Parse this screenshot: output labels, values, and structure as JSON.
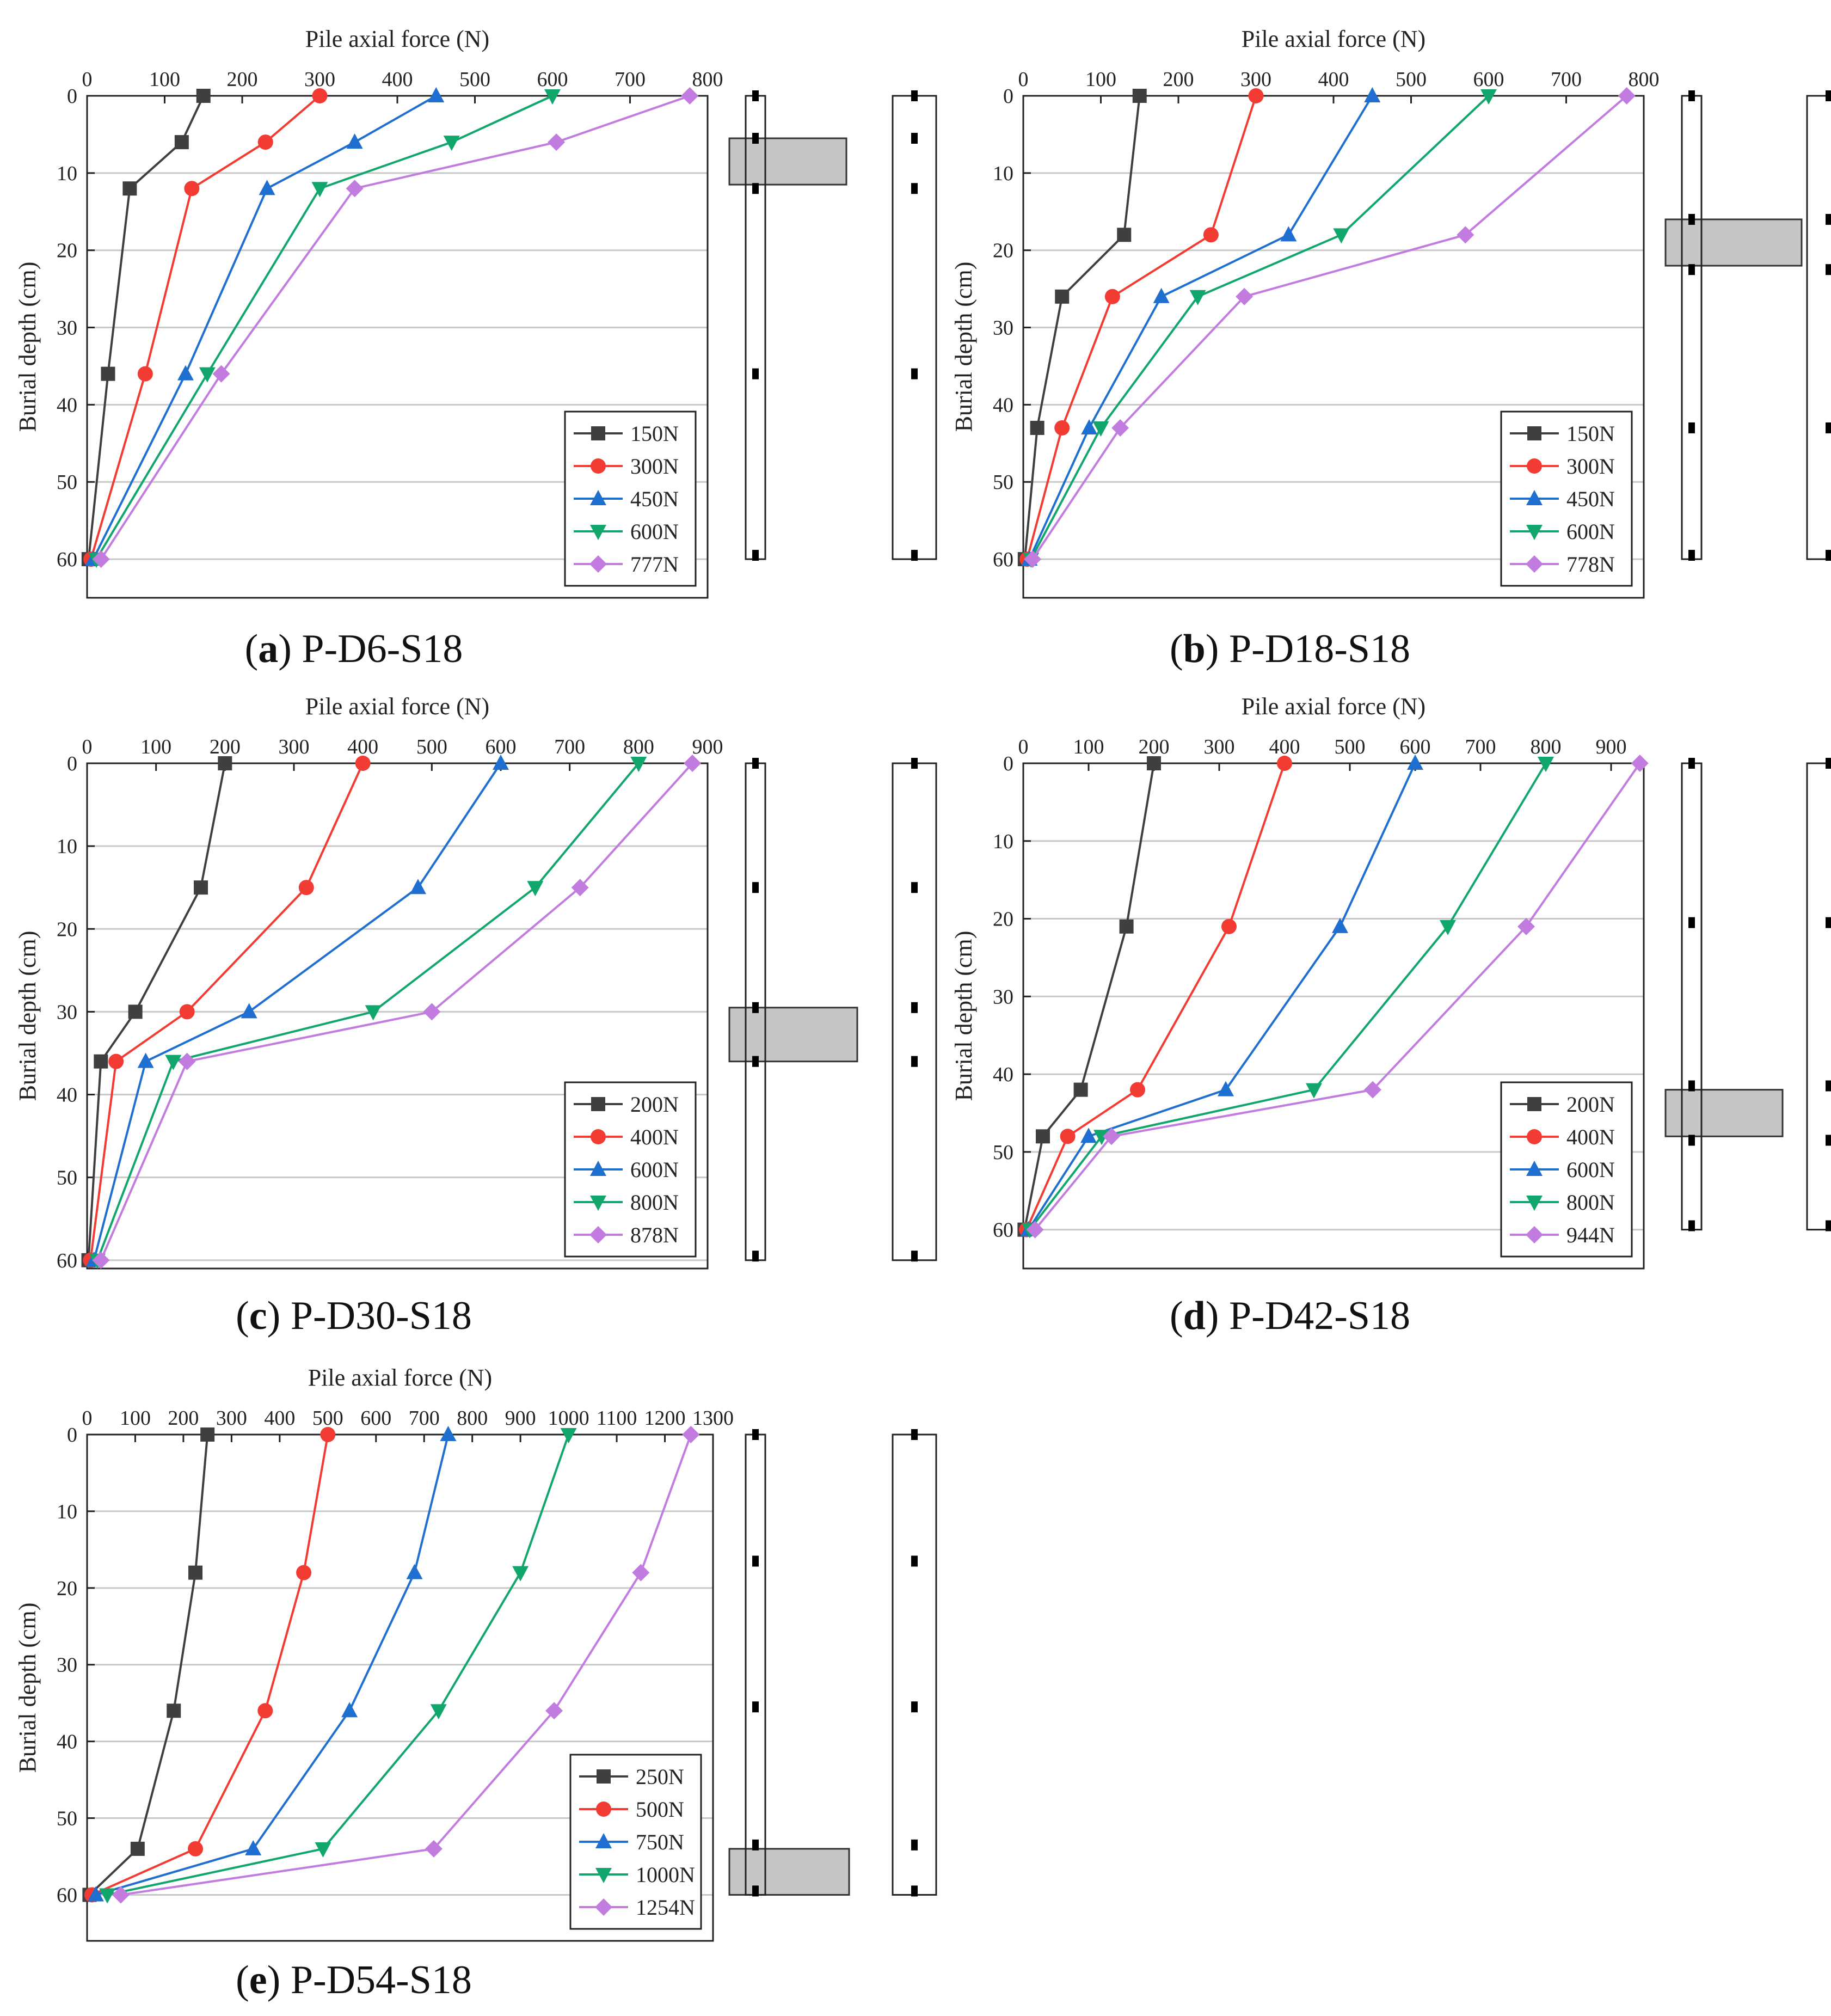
{
  "colors": {
    "series": [
      "#3f3f3f",
      "#f23b32",
      "#1f6fd0",
      "#11a66c",
      "#c27ce0"
    ],
    "soil_layer": "#c6c6c6",
    "grid": "#c8c8c8"
  },
  "markers": [
    "square-icon",
    "circle-icon",
    "triangle-up-icon",
    "triangle-down-icon",
    "diamond-icon"
  ],
  "chart_data": [
    {
      "type": "line",
      "title": "Pile axial force (N)",
      "xlabel": "Pile axial force (N)",
      "ylabel": "Burial depth (cm)",
      "caption_letter": "a",
      "caption_name": "P-D6-S18",
      "xlim": [
        0,
        800
      ],
      "ylim": [
        65,
        0
      ],
      "y_inverted": true,
      "xticks": [
        0,
        100,
        200,
        300,
        400,
        500,
        600,
        700,
        800
      ],
      "xtick_labels": [
        "0",
        "100",
        "200",
        "300",
        "400",
        "500",
        "600",
        "700",
        "800"
      ],
      "yticks": [
        0,
        10,
        20,
        30,
        40,
        50,
        60
      ],
      "ytick_labels": [
        "0",
        "10",
        "20",
        "30",
        "40",
        "50",
        "60"
      ],
      "legend_position": "bottom-right",
      "grid": "horizontal",
      "depths": [
        0,
        6,
        12,
        36,
        60
      ],
      "soil_layer_depth": [
        5.5,
        11.5
      ],
      "gauge_depths": [
        0,
        5.5,
        12,
        36,
        59.5
      ],
      "series": [
        {
          "name": "150N",
          "x": [
            150,
            122,
            55,
            27,
            2
          ]
        },
        {
          "name": "300N",
          "x": [
            300,
            230,
            135,
            75,
            5
          ]
        },
        {
          "name": "450N",
          "x": [
            450,
            345,
            232,
            127,
            8
          ]
        },
        {
          "name": "600N",
          "x": [
            600,
            470,
            300,
            155,
            12
          ]
        },
        {
          "name": "777N",
          "x": [
            777,
            605,
            345,
            173,
            18
          ]
        }
      ]
    },
    {
      "type": "line",
      "title": "Pile axial force (N)",
      "xlabel": "Pile axial force (N)",
      "ylabel": "Burial depth (cm)",
      "caption_letter": "b",
      "caption_name": "P-D18-S18",
      "xlim": [
        0,
        800
      ],
      "ylim": [
        65,
        0
      ],
      "y_inverted": true,
      "xticks": [
        0,
        100,
        200,
        300,
        400,
        500,
        600,
        700,
        800
      ],
      "xtick_labels": [
        "0",
        "100",
        "200",
        "300",
        "400",
        "500",
        "600",
        "700",
        "800"
      ],
      "yticks": [
        0,
        10,
        20,
        30,
        40,
        50,
        60
      ],
      "ytick_labels": [
        "0",
        "10",
        "20",
        "30",
        "40",
        "50",
        "60"
      ],
      "legend_position": "bottom-right",
      "grid": "horizontal",
      "depths": [
        0,
        18,
        26,
        43,
        60
      ],
      "soil_layer_depth": [
        16,
        22
      ],
      "gauge_depths": [
        0,
        16,
        22.5,
        43,
        59.5
      ],
      "series": [
        {
          "name": "150N",
          "x": [
            150,
            130,
            50,
            18,
            2
          ]
        },
        {
          "name": "300N",
          "x": [
            300,
            242,
            115,
            50,
            5
          ]
        },
        {
          "name": "450N",
          "x": [
            450,
            342,
            178,
            85,
            8
          ]
        },
        {
          "name": "600N",
          "x": [
            600,
            410,
            225,
            100,
            10
          ]
        },
        {
          "name": "778N",
          "x": [
            778,
            570,
            285,
            125,
            12
          ]
        }
      ]
    },
    {
      "type": "line",
      "title": "Pile axial force (N)",
      "xlabel": "Pile axial force (N)",
      "ylabel": "Burial depth (cm)",
      "caption_letter": "c",
      "caption_name": "P-D30-S18",
      "xlim": [
        0,
        900
      ],
      "ylim": [
        61,
        0
      ],
      "y_inverted": true,
      "xticks": [
        0,
        100,
        200,
        300,
        400,
        500,
        600,
        700,
        800,
        900
      ],
      "xtick_labels": [
        "0",
        "100",
        "200",
        "300",
        "400",
        "500",
        "600",
        "700",
        "800",
        "900"
      ],
      "yticks": [
        0,
        10,
        20,
        30,
        40,
        50,
        60
      ],
      "ytick_labels": [
        "0",
        "10",
        "20",
        "30",
        "40",
        "50",
        "60"
      ],
      "legend_position": "bottom-right",
      "grid": "horizontal",
      "depths": [
        0,
        15,
        30,
        36,
        60
      ],
      "soil_layer_depth": [
        29.5,
        36
      ],
      "gauge_depths": [
        0,
        15,
        29.5,
        36,
        59.5
      ],
      "series": [
        {
          "name": "200N",
          "x": [
            200,
            165,
            70,
            20,
            2
          ]
        },
        {
          "name": "400N",
          "x": [
            400,
            318,
            145,
            42,
            5
          ]
        },
        {
          "name": "600N",
          "x": [
            600,
            480,
            235,
            85,
            10
          ]
        },
        {
          "name": "800N",
          "x": [
            800,
            650,
            415,
            125,
            15
          ]
        },
        {
          "name": "878N",
          "x": [
            878,
            715,
            500,
            145,
            20
          ]
        }
      ]
    },
    {
      "type": "line",
      "title": "Pile axial force (N)",
      "xlabel": "Pile axial force (N)",
      "ylabel": "Burial depth (cm)",
      "caption_letter": "d",
      "caption_name": "P-D42-S18",
      "xlim": [
        0,
        950
      ],
      "ylim": [
        65,
        0
      ],
      "y_inverted": true,
      "xticks": [
        0,
        100,
        200,
        300,
        400,
        500,
        600,
        700,
        800,
        900
      ],
      "xtick_labels": [
        "0",
        "100",
        "200",
        "300",
        "400",
        "500",
        "600",
        "700",
        "800",
        "900"
      ],
      "yticks": [
        0,
        10,
        20,
        30,
        40,
        50,
        60
      ],
      "ytick_labels": [
        "0",
        "10",
        "20",
        "30",
        "40",
        "50",
        "60"
      ],
      "legend_position": "bottom-right",
      "grid": "horizontal",
      "depths": [
        0,
        21,
        42,
        48,
        60
      ],
      "soil_layer_depth": [
        42,
        48
      ],
      "gauge_depths": [
        0,
        20.5,
        41.5,
        48.5,
        59.5
      ],
      "series": [
        {
          "name": "200N",
          "x": [
            200,
            158,
            88,
            30,
            2
          ]
        },
        {
          "name": "400N",
          "x": [
            400,
            315,
            175,
            68,
            5
          ]
        },
        {
          "name": "600N",
          "x": [
            600,
            485,
            310,
            100,
            8
          ]
        },
        {
          "name": "800N",
          "x": [
            800,
            650,
            445,
            120,
            10
          ]
        },
        {
          "name": "944N",
          "x": [
            944,
            770,
            535,
            135,
            18
          ]
        }
      ]
    },
    {
      "type": "line",
      "title": "Pile axial force (N)",
      "xlabel": "Pile axial force (N)",
      "ylabel": "Burial depth (cm)",
      "caption_letter": "e",
      "caption_name": "P-D54-S18",
      "xlim": [
        0,
        1300
      ],
      "ylim": [
        66,
        0
      ],
      "y_inverted": true,
      "xticks": [
        0,
        100,
        200,
        300,
        400,
        500,
        600,
        700,
        800,
        900,
        1000,
        1100,
        1200,
        1300
      ],
      "xtick_labels": [
        "0",
        "100",
        "200",
        "300",
        "400",
        "500",
        "600",
        "700",
        "800",
        "900",
        "1000",
        "1100",
        "1200",
        "1300"
      ],
      "yticks": [
        0,
        10,
        20,
        30,
        40,
        50,
        60
      ],
      "ytick_labels": [
        "0",
        "10",
        "20",
        "30",
        "40",
        "50",
        "60"
      ],
      "legend_position": "bottom-right",
      "grid": "horizontal",
      "depths": [
        0,
        18,
        36,
        54,
        60
      ],
      "soil_layer_depth": [
        54,
        60
      ],
      "gauge_depths": [
        0,
        16.5,
        35.5,
        53.5,
        59.5
      ],
      "series": [
        {
          "name": "250N",
          "x": [
            250,
            225,
            180,
            105,
            5
          ]
        },
        {
          "name": "500N",
          "x": [
            500,
            450,
            370,
            225,
            10
          ]
        },
        {
          "name": "750N",
          "x": [
            750,
            680,
            545,
            345,
            18
          ]
        },
        {
          "name": "1000N",
          "x": [
            1000,
            900,
            730,
            490,
            42
          ]
        },
        {
          "name": "1254N",
          "x": [
            1254,
            1150,
            970,
            720,
            70
          ]
        }
      ]
    }
  ]
}
